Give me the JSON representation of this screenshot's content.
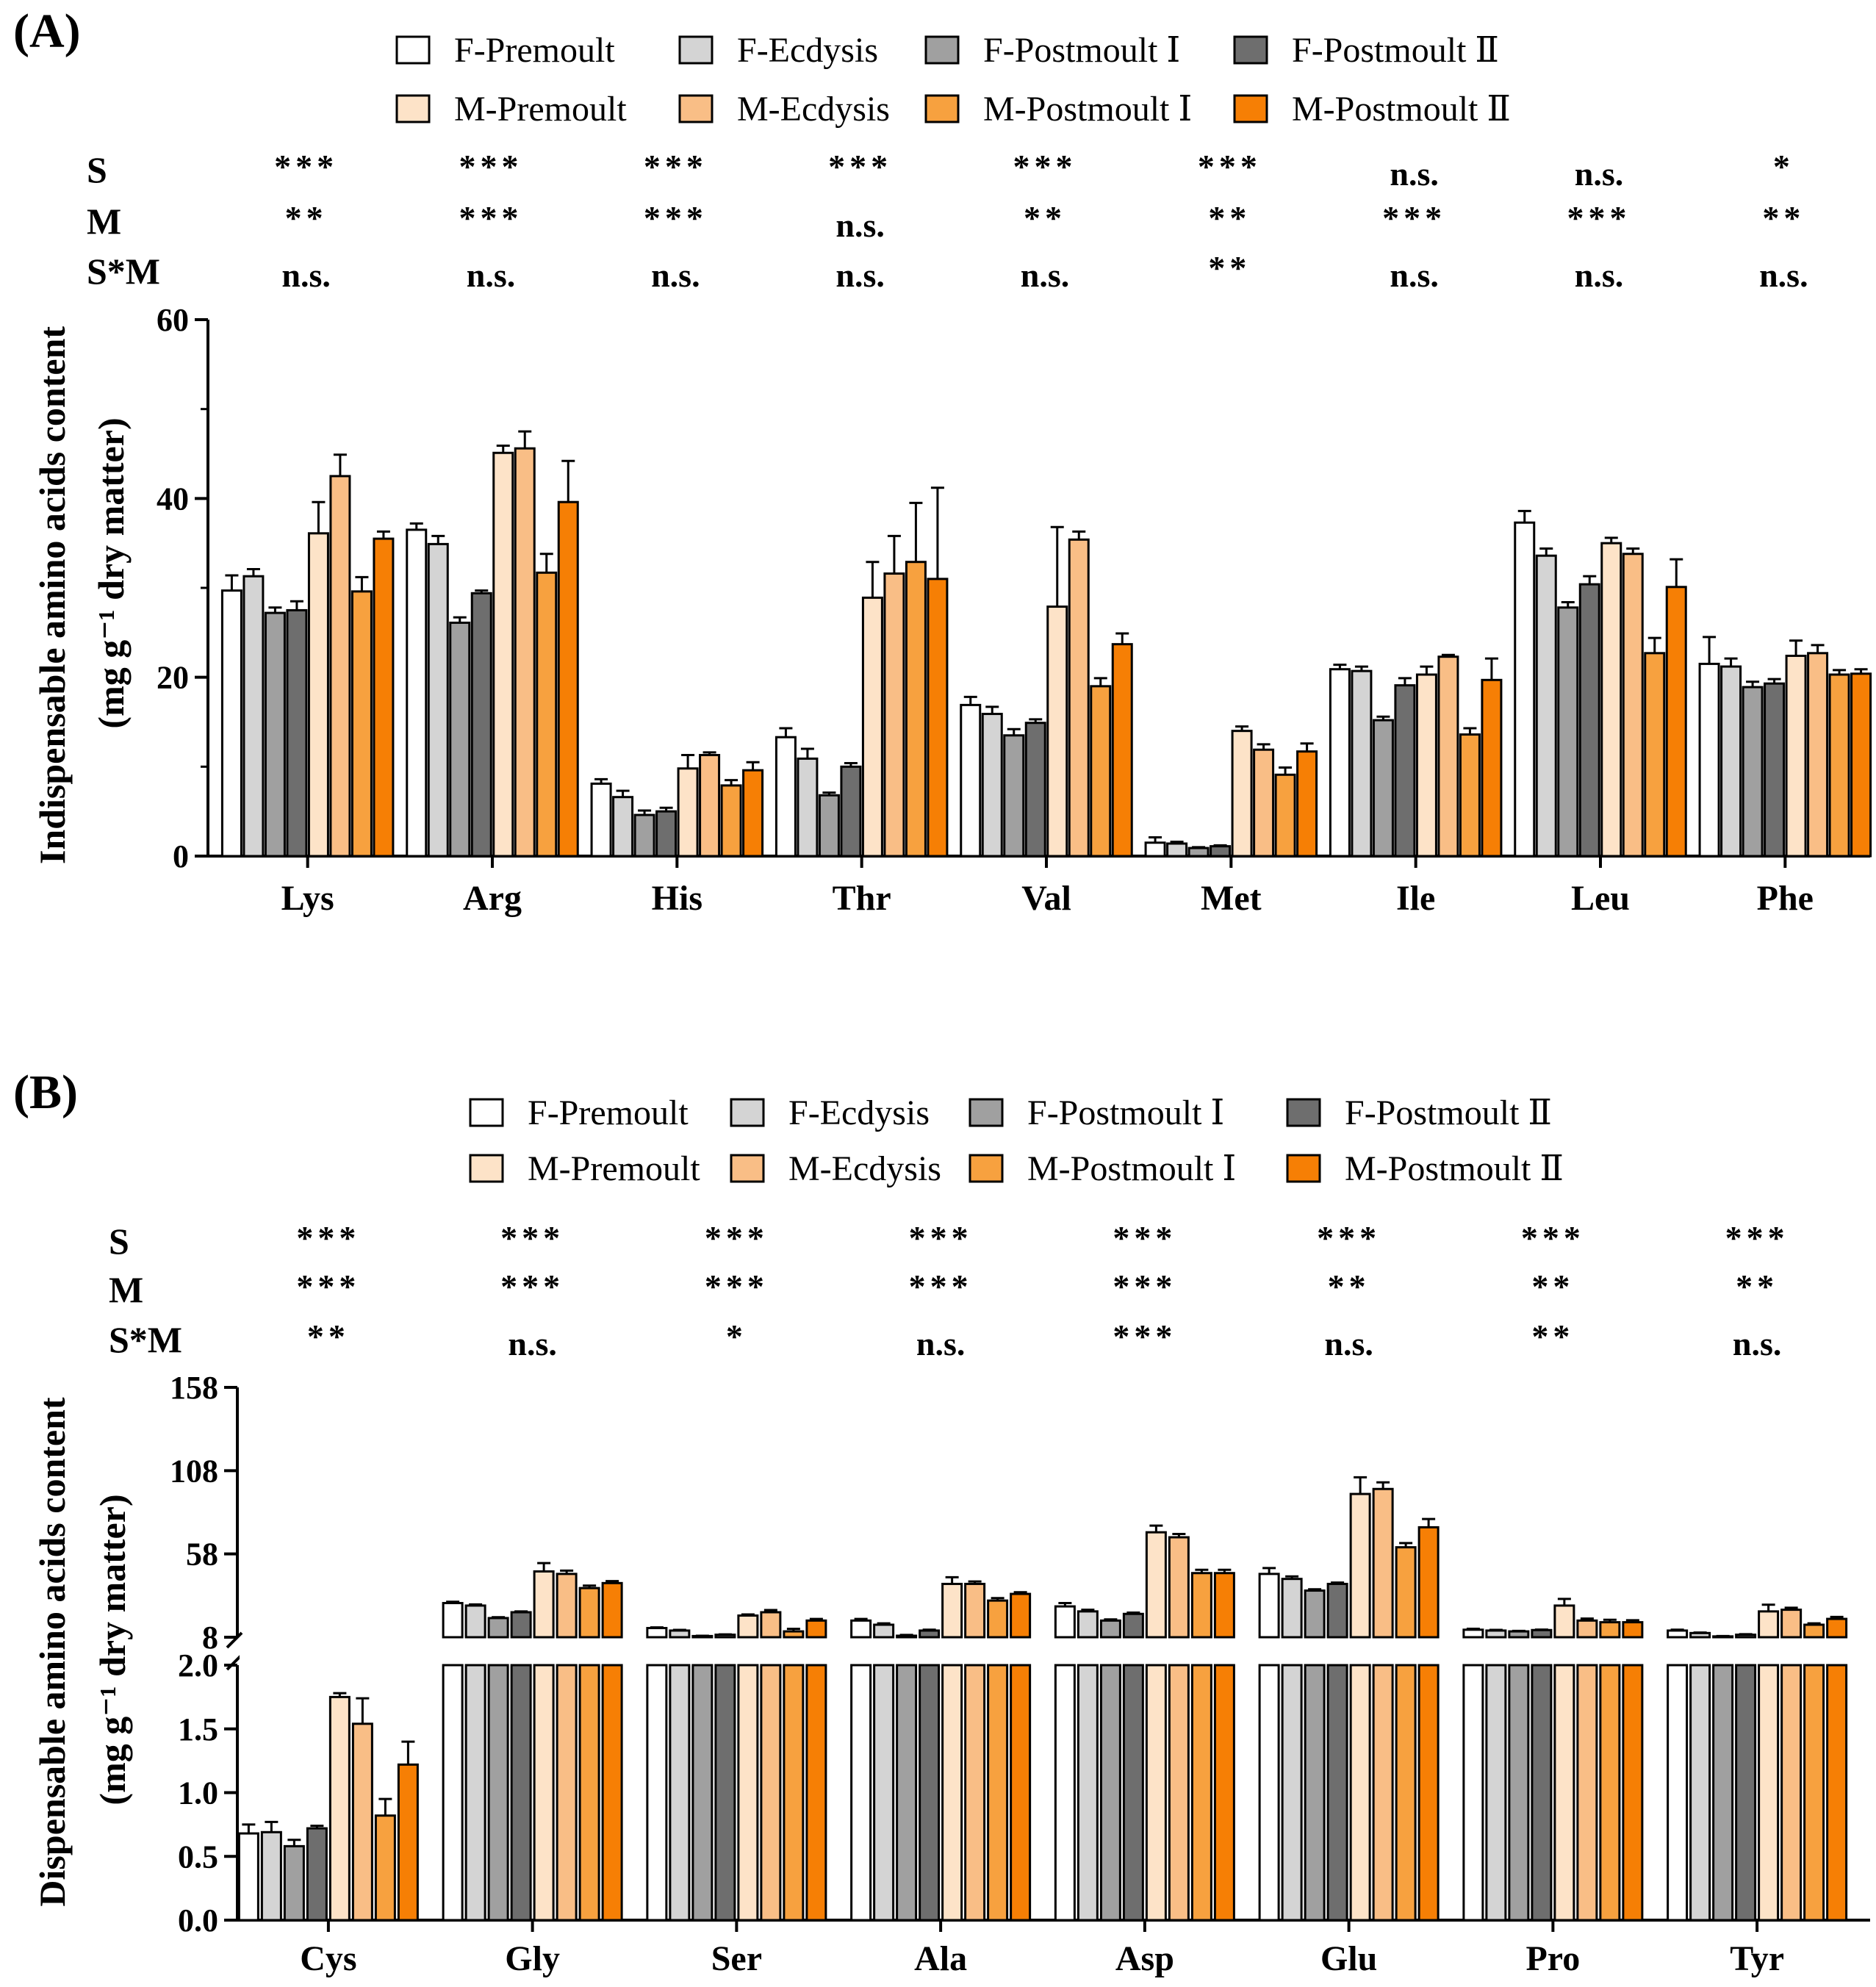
{
  "series_colors": {
    "F-Premoult": "#ffffff",
    "F-Ecdysis": "#d4d4d4",
    "F-Postmoult Ⅰ": "#a0a0a0",
    "F-Postmoult Ⅱ": "#6e6e6e",
    "M-Premoult": "#fde3c8",
    "M-Ecdysis": "#f9be86",
    "M-Postmoult Ⅰ": "#f7a13f",
    "M-Postmoult Ⅱ": "#f67f05"
  },
  "legend": [
    "F-Premoult",
    "F-Ecdysis",
    "F-Postmoult Ⅰ",
    "F-Postmoult Ⅱ",
    "M-Premoult",
    "M-Ecdysis",
    "M-Postmoult Ⅰ",
    "M-Postmoult Ⅱ"
  ],
  "stat_row_labels": [
    "S",
    "M",
    "S*M"
  ],
  "chart_data": [
    {
      "panel": "(A)",
      "type": "bar",
      "ylabel": "Indispensable amino acids content",
      "ylabel_units": "(mg g⁻¹ dry matter)",
      "ylim": [
        0,
        60
      ],
      "yticks": [
        0,
        20,
        40,
        60
      ],
      "categories": [
        "Lys",
        "Arg",
        "His",
        "Thr",
        "Val",
        "Met",
        "Ile",
        "Leu",
        "Phe"
      ],
      "significance": {
        "S": [
          "***",
          "***",
          "***",
          "***",
          "***",
          "***",
          "n.s.",
          "n.s.",
          "*"
        ],
        "M": [
          "**",
          "***",
          "***",
          "n.s.",
          "**",
          "**",
          "***",
          "***",
          "**"
        ],
        "S*M": [
          "n.s.",
          "n.s.",
          "n.s.",
          "n.s.",
          "n.s.",
          "**",
          "n.s.",
          "n.s.",
          "n.s."
        ]
      },
      "series": [
        {
          "name": "F-Premoult",
          "values": [
            29.7,
            36.5,
            8.1,
            13.3,
            16.9,
            1.5,
            20.9,
            37.3,
            21.5
          ],
          "errors": [
            1.7,
            0.7,
            0.5,
            1.0,
            0.9,
            0.6,
            0.5,
            1.3,
            3.0
          ]
        },
        {
          "name": "F-Ecdysis",
          "values": [
            31.3,
            34.9,
            6.6,
            10.9,
            15.9,
            1.4,
            20.7,
            33.6,
            21.2
          ],
          "errors": [
            0.8,
            0.9,
            0.7,
            1.1,
            0.8,
            0.2,
            0.5,
            0.8,
            0.9
          ]
        },
        {
          "name": "F-Postmoult Ⅰ",
          "values": [
            27.2,
            26.1,
            4.6,
            6.8,
            13.5,
            0.9,
            15.2,
            27.8,
            18.9
          ],
          "errors": [
            0.6,
            0.6,
            0.5,
            0.3,
            0.7,
            0.1,
            0.4,
            0.6,
            0.6
          ]
        },
        {
          "name": "F-Postmoult Ⅱ",
          "values": [
            27.5,
            29.4,
            5.0,
            10.0,
            14.9,
            1.1,
            19.1,
            30.4,
            19.3
          ],
          "errors": [
            1.0,
            0.3,
            0.4,
            0.4,
            0.4,
            0.1,
            0.8,
            0.9,
            0.5
          ]
        },
        {
          "name": "M-Premoult",
          "values": [
            36.1,
            45.1,
            9.8,
            28.9,
            27.9,
            14.0,
            20.3,
            35.0,
            22.4
          ],
          "errors": [
            3.5,
            0.8,
            1.5,
            4.0,
            8.9,
            0.5,
            0.9,
            0.6,
            1.7
          ]
        },
        {
          "name": "M-Ecdysis",
          "values": [
            42.5,
            45.6,
            11.3,
            31.6,
            35.4,
            11.9,
            22.3,
            33.8,
            22.7
          ],
          "errors": [
            2.4,
            1.9,
            0.3,
            4.2,
            0.9,
            0.6,
            0.2,
            0.6,
            0.9
          ]
        },
        {
          "name": "M-Postmoult Ⅰ",
          "values": [
            29.6,
            31.7,
            7.9,
            32.9,
            19.0,
            9.1,
            13.6,
            22.7,
            20.3
          ],
          "errors": [
            1.6,
            2.1,
            0.6,
            6.6,
            0.9,
            0.8,
            0.7,
            1.7,
            0.5
          ]
        },
        {
          "name": "M-Postmoult Ⅱ",
          "values": [
            35.5,
            39.6,
            9.6,
            31.0,
            23.7,
            11.7,
            19.7,
            30.1,
            20.4
          ],
          "errors": [
            0.8,
            4.6,
            0.9,
            10.2,
            1.2,
            0.9,
            2.4,
            3.1,
            0.5
          ]
        }
      ]
    },
    {
      "panel": "(B)",
      "type": "bar",
      "ylabel": "Dispensable amino acids content",
      "ylabel_units": "(mg g⁻¹ dry matter)",
      "broken_axis": {
        "lower_range": [
          0,
          2.0
        ],
        "upper_range": [
          8,
          158
        ]
      },
      "ylim_lower": [
        0,
        2.0
      ],
      "ylim_upper": [
        8,
        158
      ],
      "yticks_lower": [
        "0.0",
        "0.5",
        "1.0",
        "1.5",
        "2.0"
      ],
      "yticks_upper": [
        "8",
        "58",
        "108",
        "158"
      ],
      "categories": [
        "Cys",
        "Gly",
        "Ser",
        "Ala",
        "Asp",
        "Glu",
        "Pro",
        "Tyr"
      ],
      "significance": {
        "S": [
          "***",
          "***",
          "***",
          "***",
          "***",
          "***",
          "***",
          "***"
        ],
        "M": [
          "***",
          "***",
          "***",
          "***",
          "***",
          "**",
          "**",
          "**"
        ],
        "S*M": [
          "**",
          "n.s.",
          "*",
          "n.s.",
          "***",
          "n.s.",
          "**",
          "n.s."
        ]
      },
      "series": [
        {
          "name": "F-Premoult",
          "values": [
            0.68,
            28.5,
            13.5,
            18.0,
            26.5,
            46.0,
            12.5,
            12.0
          ],
          "errors": [
            0.07,
            0.8,
            0.4,
            1.0,
            2.0,
            3.5,
            0.6,
            0.5
          ]
        },
        {
          "name": "F-Ecdysis",
          "values": [
            0.69,
            27.0,
            12.0,
            15.5,
            23.5,
            43.0,
            12.0,
            10.5
          ],
          "errors": [
            0.08,
            0.7,
            0.4,
            0.8,
            1.0,
            1.5,
            0.4,
            0.3
          ]
        },
        {
          "name": "F-Postmoult Ⅰ",
          "values": [
            0.58,
            19.5,
            8.7,
            8.9,
            18.0,
            36.0,
            11.5,
            8.5
          ],
          "errors": [
            0.05,
            0.5,
            0.2,
            0.5,
            0.7,
            0.8,
            0.3,
            0.2
          ]
        },
        {
          "name": "F-Postmoult Ⅱ",
          "values": [
            0.72,
            23.0,
            9.5,
            12.0,
            22.0,
            40.0,
            12.3,
            9.5
          ],
          "errors": [
            0.02,
            0.5,
            0.2,
            0.5,
            0.8,
            0.8,
            0.3,
            0.3
          ]
        },
        {
          "name": "M-Premoult",
          "values": [
            1.75,
            47.5,
            21.0,
            40.0,
            71.0,
            94.0,
            27.0,
            23.5
          ],
          "errors": [
            0.03,
            5.0,
            0.7,
            4.0,
            4.0,
            10.0,
            4.0,
            4.0
          ]
        },
        {
          "name": "M-Ecdysis",
          "values": [
            1.54,
            46.0,
            23.0,
            40.0,
            68.0,
            97.0,
            18.0,
            24.5
          ],
          "errors": [
            0.2,
            2.0,
            1.3,
            1.5,
            2.0,
            4.0,
            1.2,
            1.2
          ]
        },
        {
          "name": "M-Postmoult Ⅰ",
          "values": [
            0.82,
            37.5,
            11.5,
            30.0,
            46.5,
            62.0,
            17.0,
            15.5
          ],
          "errors": [
            0.13,
            1.5,
            1.5,
            1.5,
            2.0,
            2.5,
            1.5,
            0.8
          ]
        },
        {
          "name": "M-Postmoult Ⅱ",
          "values": [
            1.22,
            40.5,
            18.0,
            34.0,
            46.5,
            74.0,
            17.0,
            19.0
          ],
          "errors": [
            0.18,
            1.2,
            1.0,
            1.0,
            2.0,
            5.0,
            1.2,
            1.2
          ]
        }
      ]
    }
  ]
}
